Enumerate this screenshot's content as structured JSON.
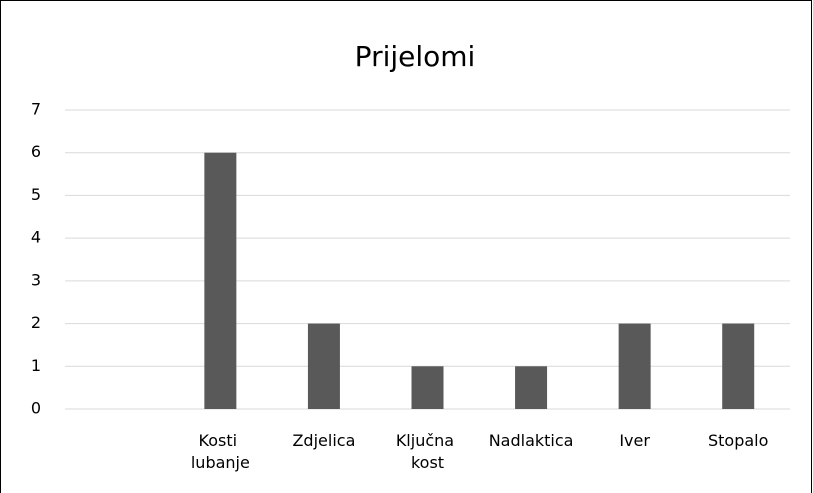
{
  "chart_data": {
    "type": "bar",
    "title": "Prijelomi",
    "categories": [
      null,
      "Kosti lubanje",
      "Zdjelica",
      "Ključna kost",
      "Nadlaktica",
      "Iver",
      "Stopalo"
    ],
    "values": [
      null,
      6,
      2,
      1,
      1,
      2,
      2
    ],
    "color": "#595959",
    "ylim": [
      0,
      7
    ],
    "yticks": [
      0,
      1,
      2,
      3,
      4,
      5,
      6,
      7
    ],
    "grid": true
  }
}
